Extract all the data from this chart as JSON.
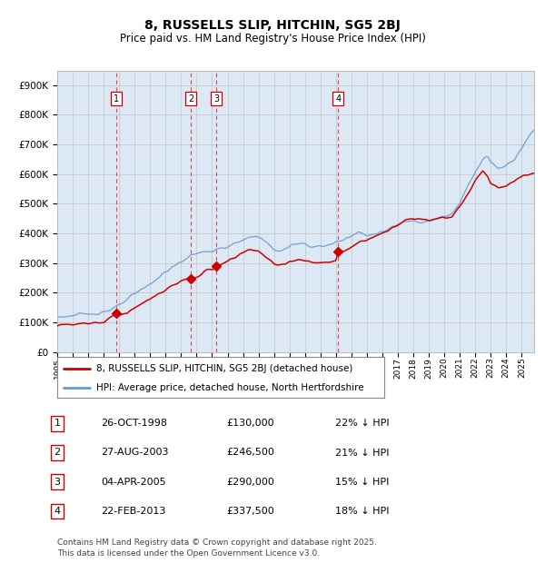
{
  "title1": "8, RUSSELLS SLIP, HITCHIN, SG5 2BJ",
  "title2": "Price paid vs. HM Land Registry's House Price Index (HPI)",
  "ylabel_ticks": [
    "£0",
    "£100K",
    "£200K",
    "£300K",
    "£400K",
    "£500K",
    "£600K",
    "£700K",
    "£800K",
    "£900K"
  ],
  "ytick_values": [
    0,
    100000,
    200000,
    300000,
    400000,
    500000,
    600000,
    700000,
    800000,
    900000
  ],
  "ylim": [
    0,
    950000
  ],
  "xlim_start": 1995.0,
  "xlim_end": 2025.8,
  "xtick_years": [
    1995,
    1996,
    1997,
    1998,
    1999,
    2000,
    2001,
    2002,
    2003,
    2004,
    2005,
    2006,
    2007,
    2008,
    2009,
    2010,
    2011,
    2012,
    2013,
    2014,
    2015,
    2016,
    2017,
    2018,
    2019,
    2020,
    2021,
    2022,
    2023,
    2024,
    2025
  ],
  "sales": [
    {
      "num": 1,
      "date": "26-OCT-1998",
      "price": 130000,
      "pct": "22%",
      "year": 1998.82
    },
    {
      "num": 2,
      "date": "27-AUG-2003",
      "price": 246500,
      "pct": "21%",
      "year": 2003.65
    },
    {
      "num": 3,
      "date": "04-APR-2005",
      "price": 290000,
      "pct": "15%",
      "year": 2005.27
    },
    {
      "num": 4,
      "date": "22-FEB-2013",
      "price": 337500,
      "pct": "18%",
      "year": 2013.14
    }
  ],
  "legend_label_red": "8, RUSSELLS SLIP, HITCHIN, SG5 2BJ (detached house)",
  "legend_label_blue": "HPI: Average price, detached house, North Hertfordshire",
  "footnote": "Contains HM Land Registry data © Crown copyright and database right 2025.\nThis data is licensed under the Open Government Licence v3.0.",
  "chart_bg_color": "#dce9f5",
  "fig_bg_color": "#ffffff",
  "red_line_color": "#cc0000",
  "blue_line_color": "#6699cc",
  "dashed_vline_color": "#dd2222",
  "grid_color": "#bbbbbb",
  "sale_region_color": "#e8f0f8"
}
